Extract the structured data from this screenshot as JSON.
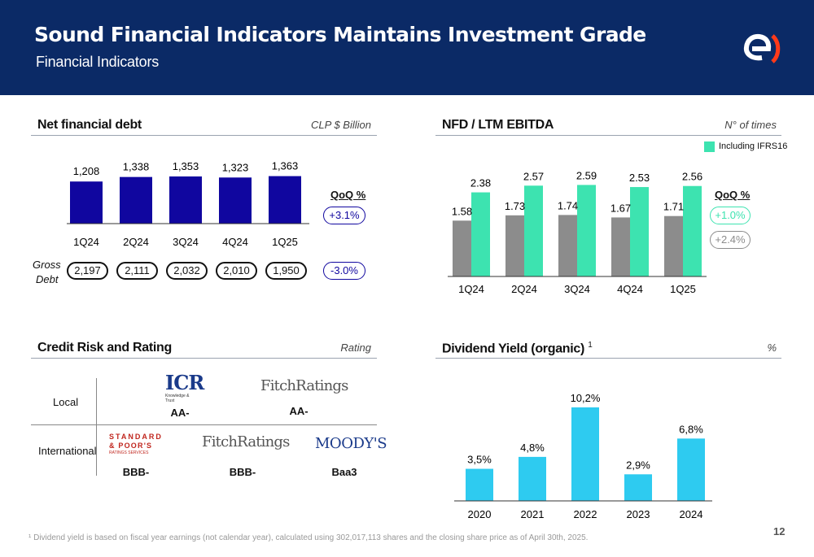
{
  "header": {
    "title": "Sound Financial Indicators Maintains Investment Grade",
    "subtitle": "Financial Indicators",
    "logo": "enel-e-logo"
  },
  "net_debt": {
    "title": "Net financial debt",
    "unit": "CLP $ Billion",
    "qoq_label": "QoQ %",
    "qoq_net": "+3.1%",
    "gross_label_1": "Gross",
    "gross_label_2": "Debt",
    "gross_values": [
      "2,197",
      "2,111",
      "2,032",
      "2,010",
      "1,950"
    ],
    "qoq_gross": "-3.0%"
  },
  "nfd_ebitda": {
    "title": "NFD / LTM EBITDA",
    "unit": "N° of times",
    "legend": "Including IFRS16",
    "qoq_label": "QoQ %",
    "qoq_ifrs": "+1.0%",
    "qoq_base": "+2.4%"
  },
  "credit": {
    "title": "Credit Risk and Rating",
    "unit": "Rating",
    "local_label": "Local",
    "intl_label": "International",
    "local_icr_logo": "ICR",
    "local_icr_logo_sub": "Knowledge & Trust",
    "local_icr": "AA-",
    "local_fitch_logo": "FitchRatings",
    "local_fitch": "AA-",
    "intl_sp_logo_1": "STANDARD",
    "intl_sp_logo_2": "& POOR'S",
    "intl_sp_logo_3": "RATINGS SERVICES",
    "intl_sp": "BBB-",
    "intl_fitch_logo": "FitchRatings",
    "intl_fitch": "BBB-",
    "intl_moodys_logo": "MOODY'S",
    "intl_moodys": "Baa3"
  },
  "dividend": {
    "title": "Dividend Yield (organic)",
    "title_sup": "1",
    "unit": "%"
  },
  "footer": {
    "footnote": "¹ Dividend yield is based on fiscal year earnings (not calendar year), calculated using 302,017,113 shares and the closing share price as of April 30th, 2025.",
    "page": "12"
  },
  "colors": {
    "navy": "#0b2a66",
    "bar_dark": "#10069f",
    "teal": "#3de3b0",
    "gray": "#8c8c8c",
    "cyan": "#2ecbf0",
    "orange": "#ff3a1a"
  },
  "chart_data": [
    {
      "type": "bar",
      "title": "Net financial debt",
      "categories": [
        "1Q24",
        "2Q24",
        "3Q24",
        "4Q24",
        "1Q25"
      ],
      "values": [
        1208,
        1338,
        1353,
        1323,
        1363
      ],
      "labels": [
        "1,208",
        "1,338",
        "1,353",
        "1,323",
        "1,363"
      ],
      "ylim": [
        0,
        1400
      ]
    },
    {
      "type": "bar",
      "title": "NFD / LTM EBITDA",
      "categories": [
        "1Q24",
        "2Q24",
        "3Q24",
        "4Q24",
        "1Q25"
      ],
      "series": [
        {
          "values": [
            1.58,
            1.73,
            1.74,
            1.67,
            1.71
          ]
        },
        {
          "name": "Including IFRS16",
          "values": [
            2.38,
            2.57,
            2.59,
            2.53,
            2.56
          ]
        }
      ],
      "ylim": [
        0,
        2.6
      ]
    },
    {
      "type": "bar",
      "title": "Dividend Yield (organic)",
      "categories": [
        "2020",
        "2021",
        "2022",
        "2023",
        "2024"
      ],
      "values": [
        3.5,
        4.8,
        10.2,
        2.9,
        6.8
      ],
      "labels": [
        "3,5%",
        "4,8%",
        "10,2%",
        "2,9%",
        "6,8%"
      ],
      "ylim": [
        0,
        10.2
      ]
    }
  ]
}
